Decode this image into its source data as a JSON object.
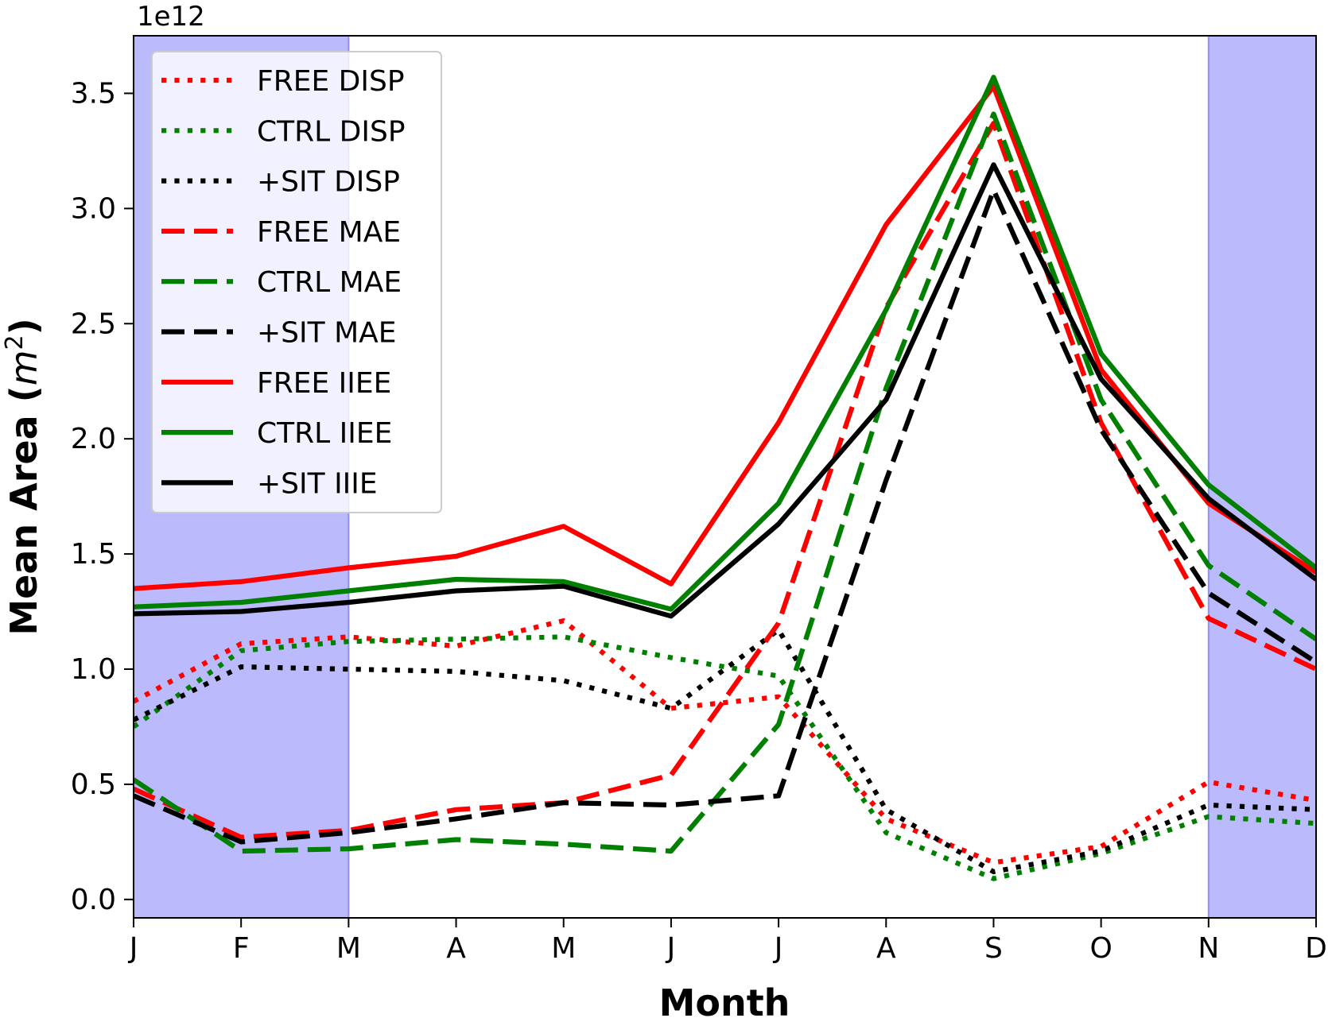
{
  "chart_data": {
    "type": "line",
    "title": "",
    "xlabel": "Month",
    "ylabel_main": "Mean Area",
    "ylabel_unit_base": "m",
    "ylabel_unit_exp": "2",
    "offset_text": "1e12",
    "scale": 1000000000000.0,
    "x": [
      "J",
      "F",
      "M",
      "A",
      "M",
      "J",
      "J",
      "A",
      "S",
      "O",
      "N",
      "D"
    ],
    "ylim": [
      -0.08,
      3.75
    ],
    "yticks": [
      0.0,
      0.5,
      1.0,
      1.5,
      2.0,
      2.5,
      3.0,
      3.5
    ],
    "ytick_labels": [
      "0.0",
      "0.5",
      "1.0",
      "1.5",
      "2.0",
      "2.5",
      "3.0",
      "3.5"
    ],
    "grid": false,
    "legend_position": "top-left",
    "shaded_regions": [
      {
        "from": 0,
        "to": 2,
        "color": "#babafc"
      },
      {
        "from": 10,
        "to": 11,
        "color": "#babafc"
      }
    ],
    "series": [
      {
        "name": "FREE DISP",
        "color": "#ff0000",
        "style": "dotted",
        "values": [
          0.86,
          1.11,
          1.14,
          1.1,
          1.21,
          0.83,
          0.88,
          0.35,
          0.16,
          0.23,
          0.51,
          0.43
        ]
      },
      {
        "name": "CTRL DISP",
        "color": "#008000",
        "style": "dotted",
        "values": [
          0.75,
          1.08,
          1.12,
          1.13,
          1.14,
          1.05,
          0.97,
          0.29,
          0.09,
          0.2,
          0.36,
          0.33
        ]
      },
      {
        "name": "+SIT DISP",
        "color": "#000000",
        "style": "dotted",
        "values": [
          0.78,
          1.01,
          1.0,
          0.99,
          0.95,
          0.83,
          1.17,
          0.39,
          0.12,
          0.21,
          0.41,
          0.39
        ]
      },
      {
        "name": "FREE MAE",
        "color": "#ff0000",
        "style": "dashed",
        "values": [
          0.48,
          0.27,
          0.3,
          0.39,
          0.42,
          0.54,
          1.2,
          2.57,
          3.37,
          2.07,
          1.22,
          1.0
        ]
      },
      {
        "name": "CTRL MAE",
        "color": "#008000",
        "style": "dashed",
        "values": [
          0.52,
          0.21,
          0.22,
          0.26,
          0.24,
          0.21,
          0.76,
          2.22,
          3.41,
          2.17,
          1.45,
          1.13
        ]
      },
      {
        "name": "+SIT MAE",
        "color": "#000000",
        "style": "dashed",
        "values": [
          0.45,
          0.25,
          0.29,
          0.35,
          0.42,
          0.41,
          0.45,
          1.82,
          3.08,
          2.04,
          1.33,
          1.03
        ]
      },
      {
        "name": "FREE IIEE",
        "color": "#ff0000",
        "style": "solid",
        "values": [
          1.35,
          1.38,
          1.44,
          1.49,
          1.62,
          1.37,
          2.07,
          2.93,
          3.53,
          2.3,
          1.72,
          1.42
        ]
      },
      {
        "name": "CTRL IIEE",
        "color": "#008000",
        "style": "solid",
        "values": [
          1.27,
          1.29,
          1.34,
          1.39,
          1.38,
          1.26,
          1.72,
          2.56,
          3.57,
          2.37,
          1.8,
          1.44
        ]
      },
      {
        "name": "+SIT IIIE",
        "color": "#000000",
        "style": "solid",
        "values": [
          1.24,
          1.25,
          1.29,
          1.34,
          1.36,
          1.23,
          1.63,
          2.17,
          3.19,
          2.26,
          1.74,
          1.39
        ]
      }
    ]
  }
}
